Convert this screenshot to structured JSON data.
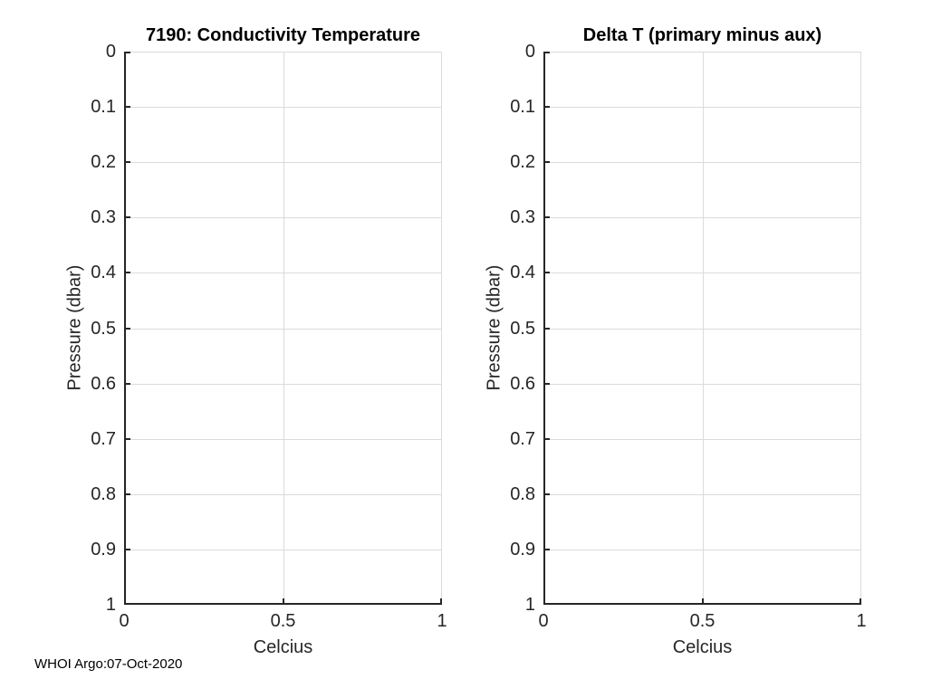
{
  "colors": {
    "axis": "#262626",
    "grid": "#dbdbdb",
    "title": "#000000",
    "tick_label": "#262626",
    "background": "#ffffff"
  },
  "footer": {
    "credit": "WHOI Argo:07-Oct-2020"
  },
  "chart_data": [
    {
      "type": "line",
      "title": "7190: Conductivity Temperature",
      "xlabel": "Celcius",
      "ylabel": "Pressure (dbar)",
      "xlim": [
        0,
        1
      ],
      "ylim": [
        0,
        1
      ],
      "y_axis_direction": "reversed",
      "grid": true,
      "legend": null,
      "xtick_values": [
        0,
        0.5,
        1
      ],
      "xtick_labels": [
        "0",
        "0.5",
        "1"
      ],
      "ytick_values": [
        0,
        0.1,
        0.2,
        0.3,
        0.4,
        0.5,
        0.6,
        0.7,
        0.8,
        0.9,
        1
      ],
      "ytick_labels": [
        "0",
        "0.1",
        "0.2",
        "0.3",
        "0.4",
        "0.5",
        "0.6",
        "0.7",
        "0.8",
        "0.9",
        "1"
      ],
      "series": []
    },
    {
      "type": "line",
      "title": "Delta T (primary minus aux)",
      "xlabel": "Celcius",
      "ylabel": "Pressure (dbar)",
      "xlim": [
        0,
        1
      ],
      "ylim": [
        0,
        1
      ],
      "y_axis_direction": "reversed",
      "grid": true,
      "legend": null,
      "xtick_values": [
        0,
        0.5,
        1
      ],
      "xtick_labels": [
        "0",
        "0.5",
        "1"
      ],
      "ytick_values": [
        0,
        0.1,
        0.2,
        0.3,
        0.4,
        0.5,
        0.6,
        0.7,
        0.8,
        0.9,
        1
      ],
      "ytick_labels": [
        "0",
        "0.1",
        "0.2",
        "0.3",
        "0.4",
        "0.5",
        "0.6",
        "0.7",
        "0.8",
        "0.9",
        "1"
      ],
      "series": []
    }
  ]
}
